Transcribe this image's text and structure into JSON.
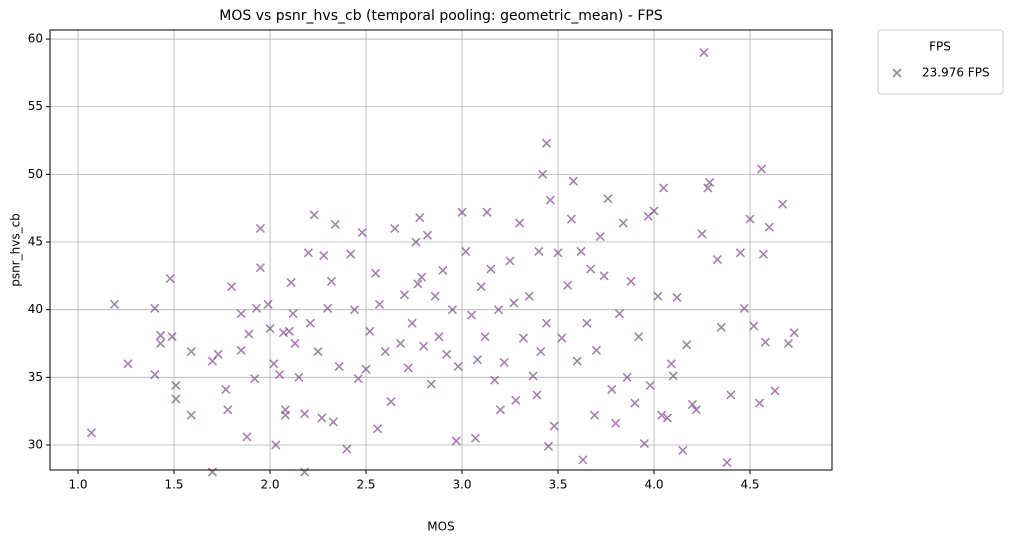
{
  "chart_data": {
    "type": "scatter",
    "title": "MOS vs psnr_hvs_cb (temporal pooling: geometric_mean) - FPS",
    "x_label": "MOS",
    "y_label": "psnr_hvs_cb",
    "legend_title": "FPS",
    "legend_position": "outside-upper-right",
    "grid": true,
    "xlim": [
      0.854,
      4.927
    ],
    "ylim": [
      28.15,
      60.67
    ],
    "xticks": [
      {
        "value": 1.0,
        "label": "1.0"
      },
      {
        "value": 1.5,
        "label": "1.5"
      },
      {
        "value": 2.0,
        "label": "2.0"
      },
      {
        "value": 2.5,
        "label": "2.5"
      },
      {
        "value": 3.0,
        "label": "3.0"
      },
      {
        "value": 3.5,
        "label": "3.5"
      },
      {
        "value": 4.0,
        "label": "4.0"
      },
      {
        "value": 4.5,
        "label": "4.5"
      }
    ],
    "yticks": [
      30,
      35,
      40,
      45,
      50,
      55,
      60
    ],
    "x": [
      1.07,
      1.19,
      1.26,
      1.4,
      1.4,
      1.43,
      1.43,
      1.48,
      1.49,
      1.51,
      1.51,
      1.59,
      1.59,
      1.7,
      1.7,
      1.73,
      1.77,
      1.78,
      1.8,
      1.85,
      1.85,
      1.88,
      1.89,
      1.92,
      1.93,
      1.95,
      1.95,
      1.99,
      2.0,
      2.02,
      2.03,
      2.05,
      2.07,
      2.08,
      2.08,
      2.1,
      2.11,
      2.12,
      2.13,
      2.15,
      2.18,
      2.18,
      2.2,
      2.21,
      2.23,
      2.25,
      2.27,
      2.28,
      2.3,
      2.32,
      2.33,
      2.34,
      2.36,
      2.4,
      2.42,
      2.44,
      2.46,
      2.48,
      2.5,
      2.52,
      2.55,
      2.56,
      2.57,
      2.6,
      2.63,
      2.65,
      2.68,
      2.7,
      2.72,
      2.74,
      2.76,
      2.77,
      2.78,
      2.79,
      2.8,
      2.82,
      2.84,
      2.86,
      2.88,
      2.9,
      2.92,
      2.95,
      2.97,
      2.98,
      3.0,
      3.02,
      3.05,
      3.07,
      3.08,
      3.1,
      3.12,
      3.13,
      3.15,
      3.17,
      3.19,
      3.2,
      3.22,
      3.25,
      3.27,
      3.28,
      3.3,
      3.32,
      3.35,
      3.37,
      3.39,
      3.4,
      3.41,
      3.42,
      3.44,
      3.44,
      3.45,
      3.46,
      3.48,
      3.5,
      3.52,
      3.55,
      3.57,
      3.58,
      3.6,
      3.62,
      3.63,
      3.65,
      3.67,
      3.69,
      3.7,
      3.72,
      3.74,
      3.76,
      3.78,
      3.8,
      3.82,
      3.84,
      3.86,
      3.88,
      3.9,
      3.92,
      3.95,
      3.97,
      3.98,
      4.0,
      4.02,
      4.04,
      4.05,
      4.07,
      4.09,
      4.1,
      4.12,
      4.15,
      4.17,
      4.2,
      4.22,
      4.25,
      4.26,
      4.28,
      4.29,
      4.33,
      4.35,
      4.38,
      4.4,
      4.45,
      4.47,
      4.5,
      4.52,
      4.55,
      4.56,
      4.57,
      4.58,
      4.6,
      4.63,
      4.67,
      4.7,
      4.73
    ],
    "series": [
      {
        "name": "23.976 FPS",
        "color": "#6a2a7c",
        "values": [
          30.9,
          40.4,
          36.0,
          40.1,
          35.2,
          38.1,
          37.5,
          42.3,
          38.0,
          34.4,
          33.4,
          36.9,
          32.2,
          36.2,
          28.0,
          36.7,
          34.1,
          32.6,
          41.7,
          39.7,
          37.0,
          30.6,
          38.2,
          34.9,
          40.1,
          43.1,
          46.0,
          40.4,
          38.6,
          36.0,
          30.0,
          35.2,
          38.3,
          32.2,
          32.6,
          38.4,
          42.0,
          39.7,
          37.5,
          35.0,
          28.0,
          32.3,
          44.2,
          39.0,
          47.0,
          36.9,
          32.0,
          44.0,
          40.1,
          42.1,
          31.7,
          46.3,
          35.8,
          29.7,
          44.1,
          40.0,
          34.9,
          45.7,
          35.6,
          38.4,
          42.7,
          31.2,
          40.4,
          36.9,
          33.2,
          46.0,
          37.5,
          41.1,
          35.7,
          39.0,
          45.0,
          41.9,
          46.8,
          42.4,
          37.3,
          45.5,
          34.5,
          41.0,
          38.0,
          42.9,
          36.7,
          40.0,
          30.3,
          35.8,
          47.2,
          44.3,
          39.6,
          30.5,
          36.3,
          41.7,
          38.0,
          47.2,
          43.0,
          34.8,
          40.0,
          32.6,
          36.1,
          43.6,
          40.5,
          33.3,
          46.4,
          37.9,
          41.0,
          35.1,
          33.7,
          44.3,
          36.9,
          50.0,
          39.0,
          52.3,
          29.9,
          48.1,
          31.4,
          44.2,
          37.9,
          41.8,
          46.7,
          49.5,
          36.2,
          44.3,
          28.9,
          39.0,
          43.0,
          32.2,
          37.0,
          45.4,
          42.5,
          48.2,
          34.1,
          31.6,
          39.7,
          46.4,
          35.0,
          42.1,
          33.1,
          38.0,
          30.1,
          46.9,
          34.4,
          47.3,
          41.0,
          32.2,
          49.0,
          32.0,
          36.0,
          35.1,
          40.9,
          29.6,
          37.4,
          33.0,
          32.6,
          45.6,
          59.0,
          49.0,
          49.4,
          43.7,
          38.7,
          28.7,
          33.7,
          44.2,
          40.1,
          46.7,
          38.8,
          33.1,
          50.4,
          44.1,
          37.6,
          46.1,
          34.0,
          47.8,
          37.5,
          38.3
        ]
      }
    ]
  }
}
